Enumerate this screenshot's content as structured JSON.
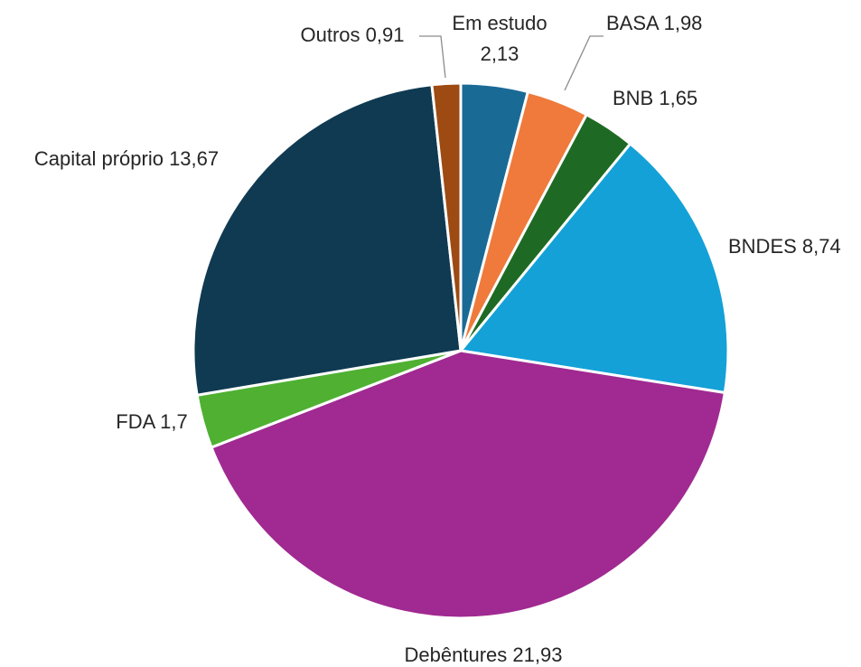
{
  "chart_data": {
    "type": "pie",
    "title": "",
    "slices": [
      {
        "name": "Em estudo",
        "value": 2.13,
        "label": "Em estudo 2,13",
        "color": "#1a6a96"
      },
      {
        "name": "BASA",
        "value": 1.98,
        "label": "BASA 1,98",
        "color": "#ef7a3b"
      },
      {
        "name": "BNB",
        "value": 1.65,
        "label": "BNB 1,65",
        "color": "#1e6a24"
      },
      {
        "name": "BNDES",
        "value": 8.74,
        "label": "BNDES 8,74",
        "color": "#13a1d8"
      },
      {
        "name": "Debêntures",
        "value": 21.93,
        "label": "Debêntures 21,93",
        "color": "#a02a91"
      },
      {
        "name": "FDA",
        "value": 1.7,
        "label": "FDA 1,7",
        "color": "#4fb032"
      },
      {
        "name": "Capital próprio",
        "value": 13.67,
        "label": "Capital próprio 13,67",
        "color": "#0f3a52"
      },
      {
        "name": "Outros",
        "value": 0.91,
        "label": "Outros 0,91",
        "color": "#9e4a13"
      }
    ]
  }
}
